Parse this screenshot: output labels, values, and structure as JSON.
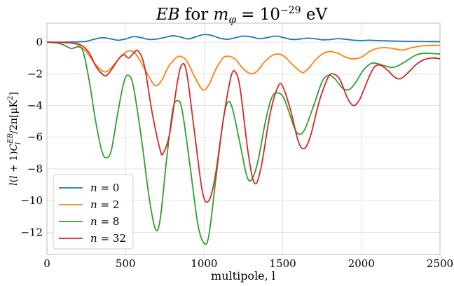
{
  "chart_data": {
    "type": "line",
    "title": {
      "part1": "EB",
      "part2": " for ",
      "part3": "m",
      "part4": "φ",
      "part5": " = 10",
      "part6": "−29",
      "part7": " eV"
    },
    "xlabel": "multipole, l",
    "ylabel": {
      "p1": "l",
      "p2": "(",
      "p3": "l",
      "p4": " + 1)",
      "p5": "C",
      "p6": "EB",
      "p7": "l",
      "p8": "/2π[μK",
      "p9": "2",
      "p10": "]"
    },
    "xlim": [
      0,
      2500
    ],
    "ylim": [
      -13.4,
      1.2
    ],
    "xticks": [
      0,
      500,
      1000,
      1500,
      2000,
      2500
    ],
    "yticks": [
      0,
      -2,
      -4,
      -6,
      -8,
      -10,
      -12
    ],
    "xtick_labels": [
      "0",
      "500",
      "1000",
      "1500",
      "2000",
      "2500"
    ],
    "ytick_labels": [
      "0",
      "−2",
      "−4",
      "−6",
      "−8",
      "−10",
      "−12"
    ],
    "grid": true,
    "legend_position": "lower-left",
    "series": [
      {
        "name": "n = 0",
        "label_var": "n",
        "label_rest": " = 0",
        "color": "#1f77b4",
        "points": [
          [
            0,
            0
          ],
          [
            100,
            0
          ],
          [
            200,
            0.02
          ],
          [
            250,
            0.05
          ],
          [
            300,
            0.18
          ],
          [
            350,
            0.28
          ],
          [
            400,
            0.22
          ],
          [
            450,
            0.12
          ],
          [
            500,
            0.2
          ],
          [
            550,
            0.35
          ],
          [
            600,
            0.28
          ],
          [
            650,
            0.17
          ],
          [
            700,
            0.2
          ],
          [
            750,
            0.3
          ],
          [
            800,
            0.4
          ],
          [
            850,
            0.32
          ],
          [
            900,
            0.2
          ],
          [
            950,
            0.35
          ],
          [
            1000,
            0.48
          ],
          [
            1050,
            0.42
          ],
          [
            1100,
            0.25
          ],
          [
            1150,
            0.18
          ],
          [
            1200,
            0.28
          ],
          [
            1250,
            0.38
          ],
          [
            1300,
            0.33
          ],
          [
            1350,
            0.22
          ],
          [
            1400,
            0.28
          ],
          [
            1450,
            0.38
          ],
          [
            1500,
            0.3
          ],
          [
            1550,
            0.18
          ],
          [
            1600,
            0.18
          ],
          [
            1650,
            0.25
          ],
          [
            1700,
            0.22
          ],
          [
            1750,
            0.15
          ],
          [
            1800,
            0.16
          ],
          [
            1850,
            0.22
          ],
          [
            1900,
            0.18
          ],
          [
            1950,
            0.12
          ],
          [
            2000,
            0.1
          ],
          [
            2050,
            0.12
          ],
          [
            2100,
            0.1
          ],
          [
            2200,
            0.07
          ],
          [
            2300,
            0.05
          ],
          [
            2400,
            0.04
          ],
          [
            2500,
            0.03
          ]
        ]
      },
      {
        "name": "n = 2",
        "label_var": "n",
        "label_rest": " = 2",
        "color": "#ff7f0e",
        "points": [
          [
            0,
            0
          ],
          [
            150,
            -0.05
          ],
          [
            200,
            -0.2
          ],
          [
            250,
            -0.6
          ],
          [
            300,
            -1.3
          ],
          [
            350,
            -1.8
          ],
          [
            380,
            -1.85
          ],
          [
            420,
            -1.5
          ],
          [
            470,
            -0.9
          ],
          [
            520,
            -0.55
          ],
          [
            560,
            -0.7
          ],
          [
            600,
            -1.3
          ],
          [
            650,
            -2.2
          ],
          [
            690,
            -2.75
          ],
          [
            730,
            -2.4
          ],
          [
            770,
            -1.6
          ],
          [
            820,
            -1.0
          ],
          [
            850,
            -0.9
          ],
          [
            890,
            -1.2
          ],
          [
            940,
            -2.2
          ],
          [
            990,
            -3.0
          ],
          [
            1030,
            -2.7
          ],
          [
            1070,
            -1.8
          ],
          [
            1120,
            -1.0
          ],
          [
            1160,
            -0.9
          ],
          [
            1200,
            -1.1
          ],
          [
            1250,
            -1.7
          ],
          [
            1300,
            -2.0
          ],
          [
            1340,
            -1.8
          ],
          [
            1380,
            -1.3
          ],
          [
            1430,
            -0.85
          ],
          [
            1470,
            -0.75
          ],
          [
            1510,
            -0.9
          ],
          [
            1560,
            -1.4
          ],
          [
            1620,
            -1.9
          ],
          [
            1660,
            -1.7
          ],
          [
            1710,
            -1.1
          ],
          [
            1760,
            -0.7
          ],
          [
            1800,
            -0.6
          ],
          [
            1850,
            -0.7
          ],
          [
            1900,
            -0.95
          ],
          [
            1950,
            -1.05
          ],
          [
            2000,
            -0.95
          ],
          [
            2050,
            -0.6
          ],
          [
            2100,
            -0.4
          ],
          [
            2150,
            -0.35
          ],
          [
            2200,
            -0.4
          ],
          [
            2260,
            -0.5
          ],
          [
            2320,
            -0.35
          ],
          [
            2400,
            -0.22
          ],
          [
            2500,
            -0.2
          ]
        ]
      },
      {
        "name": "n = 8",
        "label_var": "n",
        "label_rest": " = 8",
        "color": "#2ca02c",
        "points": [
          [
            0,
            0
          ],
          [
            60,
            -0.05
          ],
          [
            100,
            -0.15
          ],
          [
            140,
            -0.35
          ],
          [
            160,
            -0.4
          ],
          [
            200,
            -0.3
          ],
          [
            230,
            -0.6
          ],
          [
            270,
            -2.5
          ],
          [
            310,
            -5.0
          ],
          [
            350,
            -6.9
          ],
          [
            380,
            -7.3
          ],
          [
            410,
            -6.8
          ],
          [
            450,
            -4.5
          ],
          [
            490,
            -2.5
          ],
          [
            520,
            -2.1
          ],
          [
            550,
            -2.8
          ],
          [
            600,
            -6.0
          ],
          [
            650,
            -9.8
          ],
          [
            690,
            -11.8
          ],
          [
            720,
            -11.2
          ],
          [
            760,
            -7.5
          ],
          [
            800,
            -4.3
          ],
          [
            830,
            -3.7
          ],
          [
            860,
            -4.3
          ],
          [
            910,
            -7.8
          ],
          [
            960,
            -11.5
          ],
          [
            1000,
            -12.7
          ],
          [
            1030,
            -12.2
          ],
          [
            1070,
            -9.0
          ],
          [
            1120,
            -5.0
          ],
          [
            1150,
            -3.8
          ],
          [
            1180,
            -4.2
          ],
          [
            1230,
            -6.5
          ],
          [
            1270,
            -8.4
          ],
          [
            1300,
            -8.7
          ],
          [
            1340,
            -7.6
          ],
          [
            1390,
            -5.0
          ],
          [
            1430,
            -3.5
          ],
          [
            1470,
            -3.2
          ],
          [
            1510,
            -3.6
          ],
          [
            1570,
            -5.3
          ],
          [
            1600,
            -5.8
          ],
          [
            1640,
            -5.5
          ],
          [
            1700,
            -3.9
          ],
          [
            1750,
            -2.5
          ],
          [
            1790,
            -2.1
          ],
          [
            1830,
            -2.3
          ],
          [
            1880,
            -2.9
          ],
          [
            1920,
            -3.0
          ],
          [
            1960,
            -2.6
          ],
          [
            2010,
            -1.8
          ],
          [
            2060,
            -1.35
          ],
          [
            2100,
            -1.35
          ],
          [
            2150,
            -1.5
          ],
          [
            2200,
            -1.6
          ],
          [
            2250,
            -1.4
          ],
          [
            2300,
            -1.1
          ],
          [
            2350,
            -0.8
          ],
          [
            2400,
            -0.7
          ],
          [
            2450,
            -0.72
          ],
          [
            2500,
            -0.75
          ]
        ]
      },
      {
        "name": "n = 32",
        "label_var": "n",
        "label_rest": " = 32",
        "color": "#d62728",
        "points": [
          [
            0,
            0
          ],
          [
            150,
            -0.05
          ],
          [
            220,
            -0.2
          ],
          [
            270,
            -0.7
          ],
          [
            310,
            -1.5
          ],
          [
            350,
            -2.0
          ],
          [
            380,
            -2.1
          ],
          [
            420,
            -1.6
          ],
          [
            460,
            -1.0
          ],
          [
            490,
            -0.8
          ],
          [
            520,
            -1.0
          ],
          [
            550,
            -0.7
          ],
          [
            580,
            -0.55
          ],
          [
            620,
            -1.5
          ],
          [
            670,
            -4.5
          ],
          [
            720,
            -6.8
          ],
          [
            740,
            -7.0
          ],
          [
            780,
            -5.8
          ],
          [
            830,
            -2.5
          ],
          [
            860,
            -1.4
          ],
          [
            890,
            -2.0
          ],
          [
            940,
            -5.8
          ],
          [
            990,
            -9.5
          ],
          [
            1030,
            -10.0
          ],
          [
            1070,
            -8.5
          ],
          [
            1120,
            -5.0
          ],
          [
            1170,
            -2.2
          ],
          [
            1200,
            -1.9
          ],
          [
            1230,
            -3.0
          ],
          [
            1280,
            -7.0
          ],
          [
            1320,
            -8.9
          ],
          [
            1360,
            -8.0
          ],
          [
            1420,
            -4.5
          ],
          [
            1470,
            -2.8
          ],
          [
            1500,
            -2.8
          ],
          [
            1550,
            -4.3
          ],
          [
            1600,
            -6.3
          ],
          [
            1640,
            -6.7
          ],
          [
            1680,
            -5.8
          ],
          [
            1730,
            -3.8
          ],
          [
            1780,
            -2.4
          ],
          [
            1810,
            -2.0
          ],
          [
            1860,
            -2.3
          ],
          [
            1910,
            -3.5
          ],
          [
            1950,
            -4.0
          ],
          [
            1990,
            -3.6
          ],
          [
            2040,
            -2.4
          ],
          [
            2080,
            -1.6
          ],
          [
            2120,
            -1.45
          ],
          [
            2170,
            -1.8
          ],
          [
            2210,
            -2.2
          ],
          [
            2250,
            -2.3
          ],
          [
            2300,
            -1.9
          ],
          [
            2350,
            -1.4
          ],
          [
            2400,
            -1.1
          ],
          [
            2450,
            -1.0
          ],
          [
            2500,
            -1.05
          ]
        ]
      }
    ]
  }
}
